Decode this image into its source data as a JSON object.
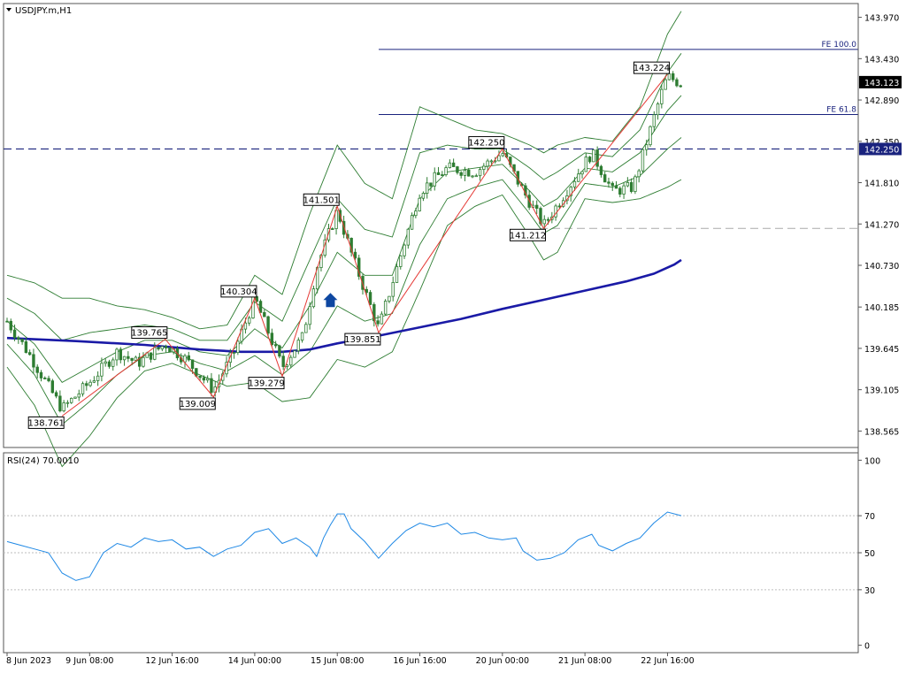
{
  "chart_data": [
    {
      "type": "candlestick",
      "symbol_label": "USDJPY.m,H1",
      "ylim": [
        138.35,
        144.15
      ],
      "y_ticks": [
        "143.970",
        "143.430",
        "142.890",
        "142.350",
        "141.810",
        "141.270",
        "140.730",
        "140.185",
        "139.645",
        "139.105",
        "138.565"
      ],
      "x_ticks": [
        "8 Jun 2023",
        "9 Jun 08:00",
        "12 Jun 16:00",
        "14 Jun 00:00",
        "15 Jun 08:00",
        "16 Jun 16:00",
        "20 Jun 00:00",
        "21 Jun 08:00",
        "22 Jun 16:00"
      ],
      "price_badges": [
        {
          "text": "143.123",
          "value": 143.123,
          "style": "black"
        },
        {
          "text": "142.250",
          "value": 142.25,
          "style": "navy"
        }
      ],
      "horizontal_lines": [
        {
          "label": "FE 100.0",
          "value": 143.55,
          "style": "solid"
        },
        {
          "label": "FE 61.8",
          "value": 142.7,
          "style": "solid"
        },
        {
          "label": "",
          "value": 142.25,
          "style": "dashed-navy"
        },
        {
          "label": "",
          "value": 141.212,
          "style": "dashed-grey"
        }
      ],
      "zigzag_labels": [
        {
          "text": "138.761",
          "value": 138.761,
          "step": 8
        },
        {
          "text": "139.765",
          "value": 139.765,
          "step": 23
        },
        {
          "text": "139.009",
          "value": 139.009,
          "step": 30
        },
        {
          "text": "140.304",
          "value": 140.304,
          "step": 36
        },
        {
          "text": "139.279",
          "value": 139.279,
          "step": 40
        },
        {
          "text": "141.501",
          "value": 141.501,
          "step": 48
        },
        {
          "text": "139.851",
          "value": 139.851,
          "step": 54
        },
        {
          "text": "142.250",
          "value": 142.25,
          "step": 72
        },
        {
          "text": "141.212",
          "value": 141.212,
          "step": 78
        },
        {
          "text": "143.224",
          "value": 143.224,
          "step": 96
        }
      ],
      "ma_200": [
        [
          0,
          139.78
        ],
        [
          10,
          139.74
        ],
        [
          20,
          139.69
        ],
        [
          28,
          139.63
        ],
        [
          34,
          139.6
        ],
        [
          40,
          139.6
        ],
        [
          44,
          139.63
        ],
        [
          48,
          139.71
        ],
        [
          54,
          139.81
        ],
        [
          60,
          139.92
        ],
        [
          66,
          140.03
        ],
        [
          72,
          140.16
        ],
        [
          78,
          140.28
        ],
        [
          84,
          140.4
        ],
        [
          90,
          140.52
        ],
        [
          94,
          140.62
        ],
        [
          97,
          140.74
        ],
        [
          98,
          140.8
        ]
      ],
      "bollinger": {
        "middle": [
          [
            0,
            140.0
          ],
          [
            4,
            139.7
          ],
          [
            8,
            139.2
          ],
          [
            12,
            139.4
          ],
          [
            16,
            139.6
          ],
          [
            20,
            139.75
          ],
          [
            24,
            139.75
          ],
          [
            28,
            139.6
          ],
          [
            32,
            139.55
          ],
          [
            36,
            139.9
          ],
          [
            40,
            139.65
          ],
          [
            44,
            140.2
          ],
          [
            48,
            140.9
          ],
          [
            52,
            140.6
          ],
          [
            56,
            140.6
          ],
          [
            60,
            141.6
          ],
          [
            64,
            141.95
          ],
          [
            68,
            142.0
          ],
          [
            72,
            142.05
          ],
          [
            76,
            141.7
          ],
          [
            78,
            141.5
          ],
          [
            80,
            141.6
          ],
          [
            84,
            142.0
          ],
          [
            88,
            141.95
          ],
          [
            92,
            142.2
          ],
          [
            96,
            142.75
          ],
          [
            98,
            142.95
          ]
        ],
        "bands": [
          {
            "name": "inner",
            "offsets": [
              [
                0,
                0.3
              ],
              [
                4,
                0.4
              ],
              [
                8,
                0.55
              ],
              [
                12,
                0.45
              ],
              [
                16,
                0.3
              ],
              [
                20,
                0.2
              ],
              [
                24,
                0.15
              ],
              [
                28,
                0.15
              ],
              [
                32,
                0.2
              ],
              [
                36,
                0.35
              ],
              [
                40,
                0.35
              ],
              [
                44,
                0.6
              ],
              [
                48,
                0.7
              ],
              [
                52,
                0.6
              ],
              [
                56,
                0.5
              ],
              [
                60,
                0.6
              ],
              [
                64,
                0.35
              ],
              [
                68,
                0.25
              ],
              [
                72,
                0.2
              ],
              [
                76,
                0.3
              ],
              [
                78,
                0.35
              ],
              [
                80,
                0.35
              ],
              [
                84,
                0.2
              ],
              [
                88,
                0.2
              ],
              [
                92,
                0.3
              ],
              [
                96,
                0.5
              ],
              [
                98,
                0.55
              ]
            ]
          },
          {
            "name": "outer",
            "offsets": [
              [
                0,
                0.6
              ],
              [
                4,
                0.8
              ],
              [
                8,
                1.1
              ],
              [
                12,
                0.9
              ],
              [
                16,
                0.6
              ],
              [
                20,
                0.4
              ],
              [
                24,
                0.3
              ],
              [
                28,
                0.3
              ],
              [
                32,
                0.4
              ],
              [
                36,
                0.7
              ],
              [
                40,
                0.7
              ],
              [
                44,
                1.2
              ],
              [
                48,
                1.4
              ],
              [
                52,
                1.2
              ],
              [
                56,
                1.0
              ],
              [
                60,
                1.2
              ],
              [
                64,
                0.7
              ],
              [
                68,
                0.5
              ],
              [
                72,
                0.4
              ],
              [
                76,
                0.6
              ],
              [
                78,
                0.7
              ],
              [
                80,
                0.7
              ],
              [
                84,
                0.4
              ],
              [
                88,
                0.4
              ],
              [
                92,
                0.6
              ],
              [
                96,
                1.0
              ],
              [
                98,
                1.1
              ]
            ]
          }
        ]
      },
      "candle_path": [
        [
          0,
          140.0
        ],
        [
          3,
          139.6
        ],
        [
          8,
          138.85
        ],
        [
          12,
          139.2
        ],
        [
          16,
          139.6
        ],
        [
          19,
          139.45
        ],
        [
          23,
          139.7
        ],
        [
          26,
          139.5
        ],
        [
          30,
          139.1
        ],
        [
          33,
          139.6
        ],
        [
          36,
          140.3
        ],
        [
          40,
          139.4
        ],
        [
          43,
          139.8
        ],
        [
          45,
          140.7
        ],
        [
          48,
          141.45
        ],
        [
          50,
          140.9
        ],
        [
          54,
          139.9
        ],
        [
          57,
          140.8
        ],
        [
          60,
          141.7
        ],
        [
          64,
          142.0
        ],
        [
          68,
          141.95
        ],
        [
          72,
          142.2
        ],
        [
          75,
          141.7
        ],
        [
          78,
          141.25
        ],
        [
          82,
          141.8
        ],
        [
          85,
          142.2
        ],
        [
          88,
          141.7
        ],
        [
          91,
          141.75
        ],
        [
          93,
          142.35
        ],
        [
          95,
          142.95
        ],
        [
          96,
          143.2
        ],
        [
          98,
          143.1
        ]
      ],
      "arrow_marker": {
        "step": 47,
        "value": 140.3
      }
    },
    {
      "type": "line",
      "label": "RSI(24) 70.0010",
      "ylim": [
        -4,
        104
      ],
      "y_ticks": [
        "100",
        "70",
        "50",
        "30",
        "0"
      ],
      "levels": [
        70,
        50,
        30
      ],
      "series": [
        {
          "values": [
            [
              0,
              56
            ],
            [
              2,
              54
            ],
            [
              4,
              52
            ],
            [
              6,
              50
            ],
            [
              8,
              39
            ],
            [
              10,
              35
            ],
            [
              12,
              37
            ],
            [
              14,
              50
            ],
            [
              16,
              55
            ],
            [
              18,
              53
            ],
            [
              20,
              58
            ],
            [
              22,
              56
            ],
            [
              24,
              57
            ],
            [
              26,
              52
            ],
            [
              28,
              53
            ],
            [
              30,
              48
            ],
            [
              32,
              52
            ],
            [
              34,
              54
            ],
            [
              36,
              61
            ],
            [
              38,
              63
            ],
            [
              40,
              55
            ],
            [
              42,
              58
            ],
            [
              44,
              53
            ],
            [
              45,
              48
            ],
            [
              46,
              58
            ],
            [
              47,
              65
            ],
            [
              48,
              71
            ],
            [
              49,
              71
            ],
            [
              50,
              63
            ],
            [
              52,
              56
            ],
            [
              54,
              47
            ],
            [
              56,
              55
            ],
            [
              58,
              62
            ],
            [
              60,
              66
            ],
            [
              62,
              64
            ],
            [
              64,
              66
            ],
            [
              66,
              60
            ],
            [
              68,
              61
            ],
            [
              70,
              58
            ],
            [
              72,
              57
            ],
            [
              74,
              58
            ],
            [
              75,
              51
            ],
            [
              77,
              46
            ],
            [
              79,
              47
            ],
            [
              81,
              50
            ],
            [
              83,
              57
            ],
            [
              85,
              60
            ],
            [
              86,
              54
            ],
            [
              88,
              51
            ],
            [
              90,
              55
            ],
            [
              92,
              58
            ],
            [
              94,
              66
            ],
            [
              96,
              72
            ],
            [
              98,
              70
            ]
          ]
        }
      ]
    }
  ]
}
